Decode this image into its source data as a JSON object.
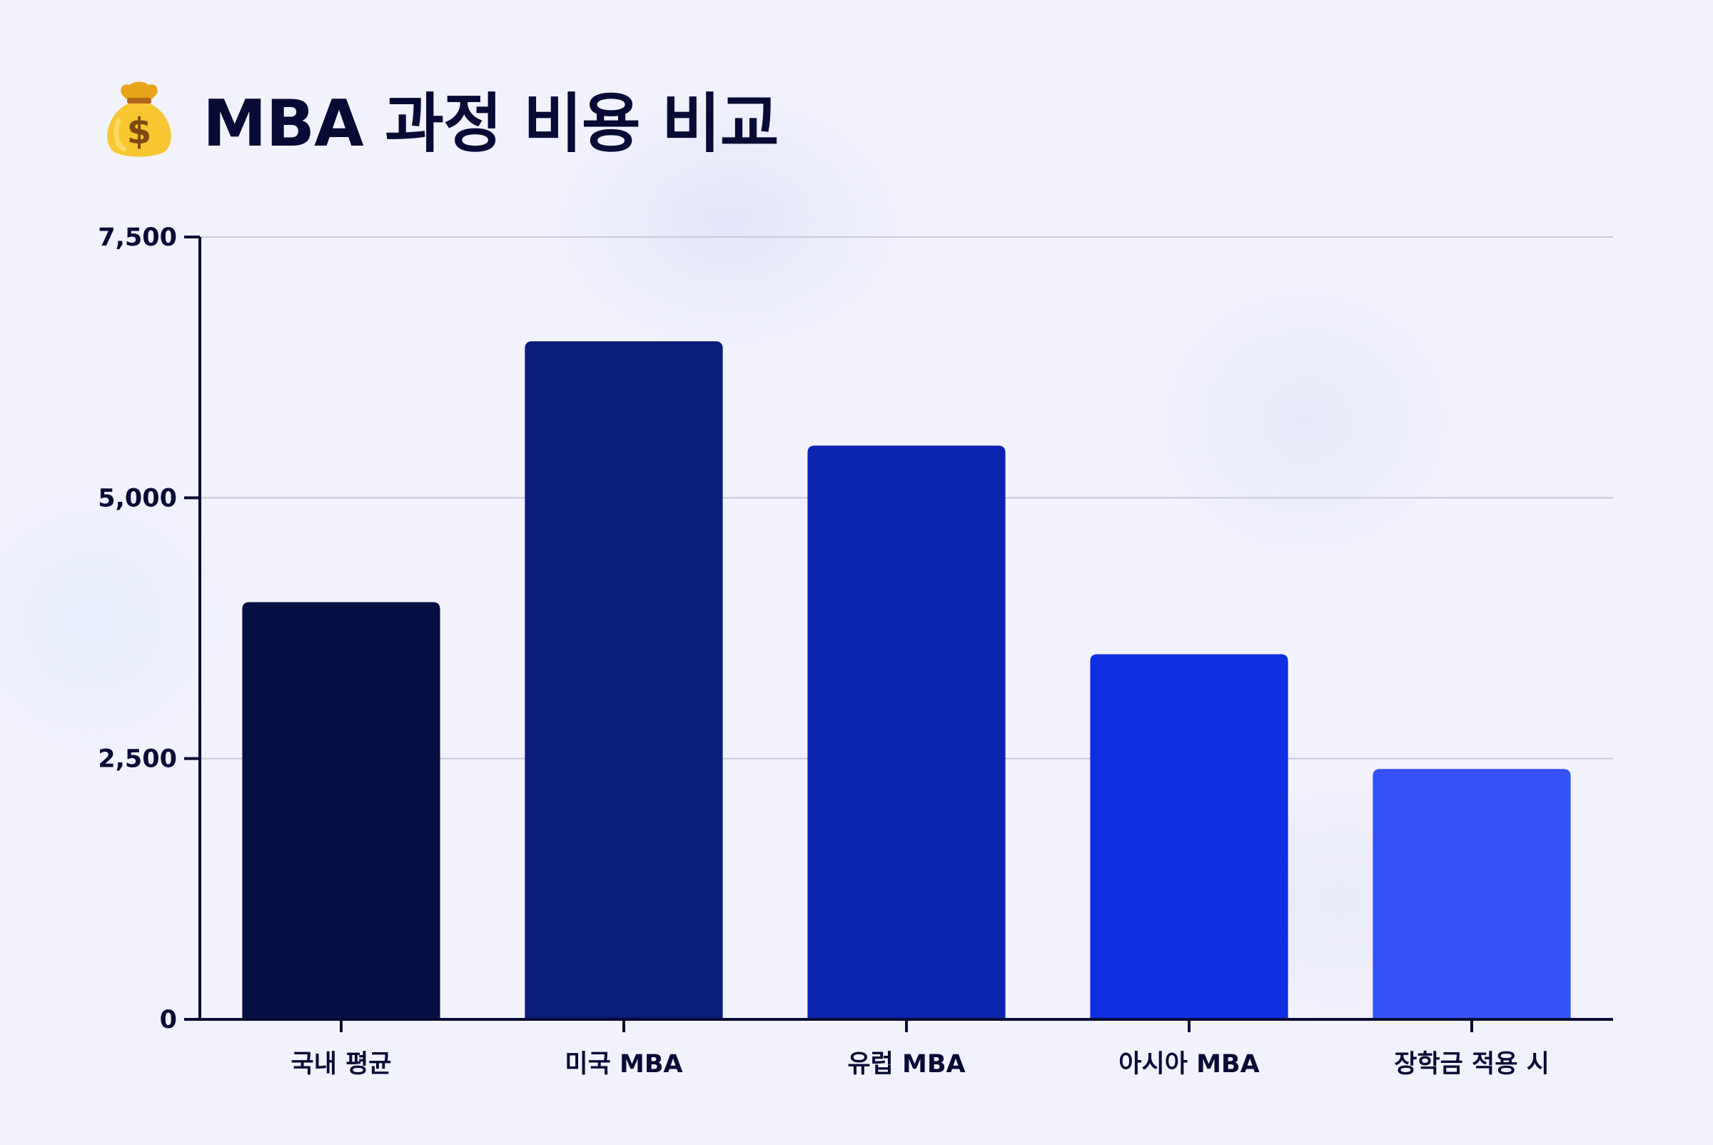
{
  "header": {
    "icon": "money-bag-icon",
    "title": "MBA 과정 비용 비교"
  },
  "chart_data": {
    "type": "bar",
    "title": "MBA 과정 비용 비교",
    "xlabel": "",
    "ylabel": "",
    "categories": [
      "국내 평균",
      "미국 MBA",
      "유럽 MBA",
      "아시아 MBA",
      "장학금 적용 시"
    ],
    "values": [
      4000,
      6500,
      5500,
      3500,
      2400
    ],
    "ylim": [
      0,
      7500
    ],
    "yticks": [
      0,
      2500,
      5000,
      7500
    ],
    "ytick_labels": [
      "0",
      "2,500",
      "5,000",
      "7,500"
    ],
    "grid": true,
    "legend": "none",
    "colors": [
      "#050f44",
      "#0a1b7a",
      "#0c25b0",
      "#0e2fe2",
      "#3452f5"
    ]
  }
}
